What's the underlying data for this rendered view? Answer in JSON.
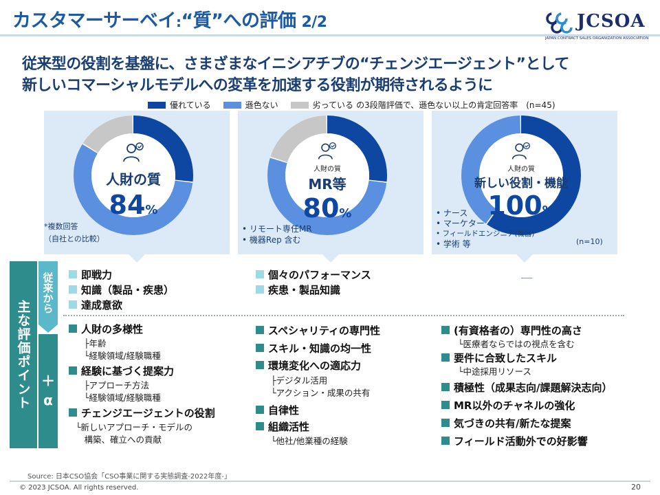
{
  "header": {
    "title": "カスタマーサーベイ",
    "colon": ":",
    "title_rest": "“質”への評価",
    "page_fraction": "2/2",
    "logo_text": "JCSOA",
    "logo_sub": "JAPAN CONTRACT SALES ORGANIZATION ASSOCIATION"
  },
  "headline": {
    "line1": "従来型の役割を基盤に、さまざまなイニシアチブの“チェンジエージェント”として",
    "line2": "新しいコマーシャルモデルへの変革を加速する役割が期待されるように"
  },
  "legend": {
    "items": [
      "優れている",
      "遜色ない",
      "劣っている"
    ],
    "note": "の3段階評価で、遜色ない以上の肯定回答率　(n=45)"
  },
  "colors": {
    "excellent": "#0d47a1",
    "comparable": "#5b8fe0",
    "inferior": "#c7c7c7",
    "panel_bg": "#dce9f6",
    "teal_dark": "#2e8c8c",
    "teal_light": "#5bb8c8"
  },
  "icons": {
    "person": "person-award-icon"
  },
  "chart_data": [
    {
      "type": "pie",
      "categories": [
        "優れている",
        "遜色ない",
        "劣っている"
      ],
      "values": [
        27,
        57,
        16
      ],
      "label": "人財の質",
      "value_label": "84",
      "unit": "%"
    },
    {
      "type": "pie",
      "categories": [
        "優れている",
        "遜色ない",
        "劣っている"
      ],
      "values": [
        27,
        53,
        20
      ],
      "label": "MR等",
      "caption": "人財の質",
      "value_label": "80",
      "unit": "%"
    },
    {
      "type": "pie",
      "categories": [
        "優れている",
        "遜色ない",
        "劣っている"
      ],
      "values": [
        60,
        40,
        0
      ],
      "label": "新しい役割・機能",
      "caption": "人財の質",
      "value_label": "100",
      "unit": "%"
    }
  ],
  "panel_notes": {
    "p1": [
      "*複数回答",
      "（自社との比較）"
    ],
    "p2": [
      "• リモート専任MR",
      "• 機器Rep 含む"
    ],
    "p3": [
      "• ナース",
      "• マーケター",
      "• フィールドエンジニア(機器)",
      "• 学術 等"
    ],
    "p3_n": "(n=10)"
  },
  "side": {
    "main": "主な評価ポイント",
    "conventional": "従来から",
    "plus": "＋",
    "alpha": "α"
  },
  "conventional": {
    "col1": [
      "即戦力",
      "知識（製品・疾患）",
      "達成意欲"
    ],
    "col2": [
      "個々のパフォーマンス",
      "疾患・製品知識"
    ],
    "col3": "—"
  },
  "plus": {
    "col1": [
      {
        "item": "人財の多様性",
        "subs": [
          "├年齢",
          "└経験領域/経験職種"
        ]
      },
      {
        "item": "経験に基づく提案力",
        "subs": [
          "├アプローチ方法",
          "└経験領域/経験職種"
        ]
      },
      {
        "item": "チェンジエージェントの役割",
        "subs": [
          "└新しいアプローチ・モデルの",
          "　構築、確立への貢献"
        ]
      }
    ],
    "col2": [
      {
        "item": "スペシャリティの専門性",
        "subs": []
      },
      {
        "item": "スキル・知識の均一性",
        "subs": []
      },
      {
        "item": "環境変化への適応力",
        "subs": [
          "├デジタル活用",
          "└アクション・成果の共有"
        ]
      },
      {
        "item": "自律性",
        "subs": []
      },
      {
        "item": "組織活性",
        "subs": [
          "└他社/他業種の経験"
        ]
      }
    ],
    "col3": [
      {
        "item": "(有資格者の）専門性の高さ",
        "subs": [
          "└医療者ならではの視点を含む"
        ]
      },
      {
        "item": "要件に合致したスキル",
        "subs": [
          "└中途採用リソース"
        ]
      },
      {
        "item": "積極性（成果志向/課題解決志向）",
        "subs": []
      },
      {
        "item": "MR以外のチャネルの強化",
        "subs": []
      },
      {
        "item": "気づきの共有/新たな提案",
        "subs": []
      },
      {
        "item": "フィールド活動外での好影響",
        "subs": []
      }
    ]
  },
  "footer": {
    "source": "Source: 日本CSO協会「CSO事業に関する実態調査-2022年度-」",
    "copyright": "© 2023 JCSOA. All rights reserved.",
    "page": "20"
  }
}
